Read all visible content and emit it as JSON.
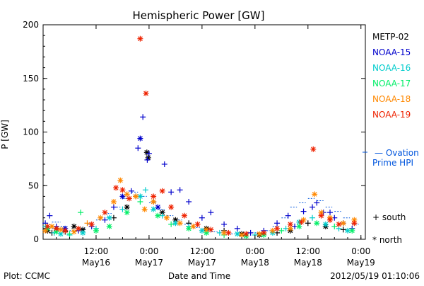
{
  "chart_data": {
    "type": "scatter",
    "title": "Hemispheric Power [GW]",
    "ylabel": "P [GW]",
    "xlabel": "Date and Time",
    "ylim": [
      0,
      200
    ],
    "yticks": [
      0,
      50,
      100,
      150,
      200
    ],
    "xlim": [
      0,
      73
    ],
    "xticks": [
      {
        "x": 12,
        "time": "12:00",
        "date": "May16"
      },
      {
        "x": 24,
        "time": "0:00",
        "date": "May17"
      },
      {
        "x": 36,
        "time": "12:00",
        "date": "May17"
      },
      {
        "x": 48,
        "time": "0:00",
        "date": "May18"
      },
      {
        "x": 60,
        "time": "12:00",
        "date": "May18"
      },
      {
        "x": 72,
        "time": "0:00",
        "date": "May19"
      }
    ],
    "grid": false,
    "legend_position": "right",
    "series": [
      {
        "name": "METP-02",
        "color": "#000000",
        "points": [
          [
            1,
            8,
            "n"
          ],
          [
            2,
            6,
            "s"
          ],
          [
            3,
            10,
            "n"
          ],
          [
            5,
            7,
            "s"
          ],
          [
            7,
            12,
            "n"
          ],
          [
            9,
            9,
            "n"
          ],
          [
            16,
            20,
            "s"
          ],
          [
            19,
            30,
            "n"
          ],
          [
            21,
            40,
            "s"
          ],
          [
            23.5,
            81,
            "n"
          ],
          [
            23.8,
            76,
            "n"
          ],
          [
            25,
            35,
            "s"
          ],
          [
            27,
            25,
            "n"
          ],
          [
            30,
            18,
            "n"
          ],
          [
            33,
            15,
            "s"
          ],
          [
            37,
            10,
            "n"
          ],
          [
            41,
            8,
            "s"
          ],
          [
            45,
            5,
            "n"
          ],
          [
            49,
            4,
            "n"
          ],
          [
            53,
            6,
            "s"
          ],
          [
            56,
            8,
            "n"
          ],
          [
            60,
            15,
            "s"
          ],
          [
            64,
            12,
            "n"
          ],
          [
            68,
            9,
            "s"
          ]
        ]
      },
      {
        "name": "NOAA-15",
        "color": "#0000cc",
        "points": [
          [
            0.5,
            15,
            "s"
          ],
          [
            1.5,
            22,
            "s"
          ],
          [
            3,
            12,
            "s"
          ],
          [
            5,
            10,
            "n"
          ],
          [
            8,
            8,
            "s"
          ],
          [
            11,
            12,
            "s"
          ],
          [
            14,
            18,
            "s"
          ],
          [
            16,
            30,
            "s"
          ],
          [
            18,
            40,
            "n"
          ],
          [
            20,
            45,
            "s"
          ],
          [
            21.5,
            85,
            "s"
          ],
          [
            22,
            94,
            "n"
          ],
          [
            22.6,
            114,
            "s"
          ],
          [
            23.6,
            74,
            "s"
          ],
          [
            24,
            80,
            "s"
          ],
          [
            26,
            30,
            "n"
          ],
          [
            27.5,
            70,
            "s"
          ],
          [
            29,
            44,
            "s"
          ],
          [
            31,
            46,
            "s"
          ],
          [
            33,
            35,
            "s"
          ],
          [
            36,
            20,
            "s"
          ],
          [
            38,
            25,
            "s"
          ],
          [
            41,
            14,
            "s"
          ],
          [
            44,
            10,
            "s"
          ],
          [
            47,
            6,
            "s"
          ],
          [
            50,
            8,
            "s"
          ],
          [
            53,
            15,
            "s"
          ],
          [
            55.5,
            22,
            "s"
          ],
          [
            57,
            12,
            "s"
          ],
          [
            59,
            26,
            "s"
          ],
          [
            61,
            30,
            "s"
          ],
          [
            62,
            34,
            "s"
          ],
          [
            63.5,
            25,
            "s"
          ],
          [
            65,
            25,
            "s"
          ],
          [
            66,
            20,
            "s"
          ],
          [
            68,
            15,
            "s"
          ],
          [
            70,
            10,
            "s"
          ]
        ]
      },
      {
        "name": "NOAA-16",
        "color": "#00cccc",
        "points": [
          [
            0.5,
            12,
            "s"
          ],
          [
            2.5,
            6,
            "s"
          ],
          [
            4,
            5,
            "n"
          ],
          [
            6,
            4,
            "s"
          ],
          [
            9,
            6,
            "n"
          ],
          [
            12,
            10,
            "s"
          ],
          [
            15,
            20,
            "n"
          ],
          [
            18,
            28,
            "s"
          ],
          [
            22,
            40,
            "n"
          ],
          [
            23.2,
            46,
            "s"
          ],
          [
            25,
            28,
            "n"
          ],
          [
            27,
            22,
            "s"
          ],
          [
            30,
            15,
            "n"
          ],
          [
            33,
            12,
            "s"
          ],
          [
            36,
            8,
            "n"
          ],
          [
            40,
            6,
            "s"
          ],
          [
            44,
            5,
            "n"
          ],
          [
            48,
            4,
            "s"
          ],
          [
            52,
            6,
            "n"
          ],
          [
            55,
            10,
            "s"
          ],
          [
            58,
            16,
            "n"
          ],
          [
            61,
            20,
            "s"
          ],
          [
            64,
            14,
            "n"
          ],
          [
            67,
            10,
            "s"
          ],
          [
            69,
            8,
            "n"
          ]
        ]
      },
      {
        "name": "NOAA-17",
        "color": "#00ee66",
        "points": [
          [
            1,
            10,
            "n"
          ],
          [
            3,
            7,
            "n"
          ],
          [
            6,
            5,
            "s"
          ],
          [
            8.5,
            25,
            "s"
          ],
          [
            12,
            8,
            "n"
          ],
          [
            15,
            12,
            "n"
          ],
          [
            19,
            25,
            "n"
          ],
          [
            22,
            35,
            "s"
          ],
          [
            26,
            22,
            "n"
          ],
          [
            29,
            14,
            "s"
          ],
          [
            33,
            10,
            "n"
          ],
          [
            37,
            6,
            "n"
          ],
          [
            41,
            4,
            "s"
          ],
          [
            46,
            3,
            "n"
          ],
          [
            50,
            4,
            "n"
          ],
          [
            54,
            8,
            "s"
          ],
          [
            58,
            12,
            "n"
          ],
          [
            62,
            15,
            "n"
          ],
          [
            66,
            12,
            "s"
          ],
          [
            70,
            8,
            "n"
          ]
        ]
      },
      {
        "name": "NOAA-18",
        "color": "#ff8800",
        "points": [
          [
            0.5,
            8,
            "n"
          ],
          [
            2,
            12,
            "n"
          ],
          [
            4,
            9,
            "n"
          ],
          [
            7,
            7,
            "n"
          ],
          [
            10,
            15,
            "s"
          ],
          [
            13,
            20,
            "n"
          ],
          [
            16,
            35,
            "n"
          ],
          [
            17.5,
            55,
            "n"
          ],
          [
            19,
            42,
            "n"
          ],
          [
            21,
            40,
            "n"
          ],
          [
            23,
            28,
            "n"
          ],
          [
            25,
            35,
            "n"
          ],
          [
            28,
            20,
            "n"
          ],
          [
            31,
            15,
            "n"
          ],
          [
            34,
            12,
            "n"
          ],
          [
            37,
            9,
            "n"
          ],
          [
            41,
            6,
            "n"
          ],
          [
            45,
            4,
            "n"
          ],
          [
            49,
            5,
            "n"
          ],
          [
            52,
            8,
            "n"
          ],
          [
            56,
            10,
            "n"
          ],
          [
            59,
            18,
            "n"
          ],
          [
            61.5,
            42,
            "n"
          ],
          [
            63,
            25,
            "n"
          ],
          [
            65,
            20,
            "n"
          ],
          [
            68,
            15,
            "n"
          ],
          [
            70.5,
            18,
            "n"
          ]
        ]
      },
      {
        "name": "NOAA-19",
        "color": "#ee2200",
        "points": [
          [
            1,
            12,
            "n"
          ],
          [
            3,
            10,
            "n"
          ],
          [
            5,
            8,
            "n"
          ],
          [
            8,
            10,
            "n"
          ],
          [
            11,
            14,
            "n"
          ],
          [
            14,
            25,
            "n"
          ],
          [
            16.5,
            48,
            "n"
          ],
          [
            18,
            46,
            "n"
          ],
          [
            19.5,
            38,
            "n"
          ],
          [
            22,
            187,
            "n"
          ],
          [
            23.3,
            136,
            "n"
          ],
          [
            25,
            40,
            "n"
          ],
          [
            27,
            45,
            "n"
          ],
          [
            29,
            30,
            "n"
          ],
          [
            32,
            22,
            "n"
          ],
          [
            35,
            14,
            "n"
          ],
          [
            38,
            9,
            "n"
          ],
          [
            42,
            6,
            "n"
          ],
          [
            46,
            5,
            "n"
          ],
          [
            50,
            6,
            "n"
          ],
          [
            53,
            10,
            "n"
          ],
          [
            56,
            14,
            "n"
          ],
          [
            58.5,
            16,
            "n"
          ],
          [
            61.2,
            84,
            "n"
          ],
          [
            63,
            22,
            "n"
          ],
          [
            65,
            18,
            "n"
          ],
          [
            67,
            14,
            "n"
          ],
          [
            70.5,
            15,
            "n"
          ]
        ]
      }
    ],
    "ovation": {
      "label_line1": "— Ovation",
      "label_line2": "Prime HPI",
      "color": "#0055dd",
      "segments": [
        [
          0,
          4,
          10
        ],
        [
          2,
          4,
          16
        ],
        [
          4,
          5.5,
          12
        ],
        [
          6,
          7.5,
          8
        ],
        [
          8,
          9.5,
          10
        ],
        [
          10,
          11.5,
          14
        ],
        [
          12,
          13.5,
          18
        ],
        [
          14,
          15.5,
          24
        ],
        [
          16,
          17.5,
          30
        ],
        [
          18,
          19.5,
          38
        ],
        [
          20,
          21.5,
          44
        ],
        [
          22,
          23.5,
          40
        ],
        [
          24,
          25.5,
          34
        ],
        [
          26,
          27.5,
          28
        ],
        [
          28,
          29.5,
          22
        ],
        [
          30,
          31.5,
          18
        ],
        [
          32,
          33.5,
          14
        ],
        [
          34,
          35.5,
          11
        ],
        [
          36,
          37.5,
          9
        ],
        [
          38,
          39.5,
          7
        ],
        [
          40,
          41.5,
          6
        ],
        [
          42,
          43.5,
          5
        ],
        [
          44,
          45.5,
          5
        ],
        [
          46,
          47.5,
          6
        ],
        [
          48,
          49.5,
          6
        ],
        [
          50,
          51.5,
          8
        ],
        [
          52,
          53.5,
          12
        ],
        [
          54,
          55.5,
          20
        ],
        [
          56,
          57.5,
          30
        ],
        [
          58,
          59.5,
          34
        ],
        [
          60,
          61.5,
          38
        ],
        [
          62,
          63.5,
          36
        ],
        [
          64,
          65.5,
          30
        ],
        [
          66,
          67.5,
          26
        ],
        [
          68,
          69.5,
          20
        ],
        [
          70,
          71.5,
          14
        ]
      ]
    },
    "marker_legend": {
      "south": "+ south",
      "north": "* north"
    }
  },
  "footer": {
    "left": "Plot: CCMC",
    "right": "2012/05/19 01:10:06"
  }
}
